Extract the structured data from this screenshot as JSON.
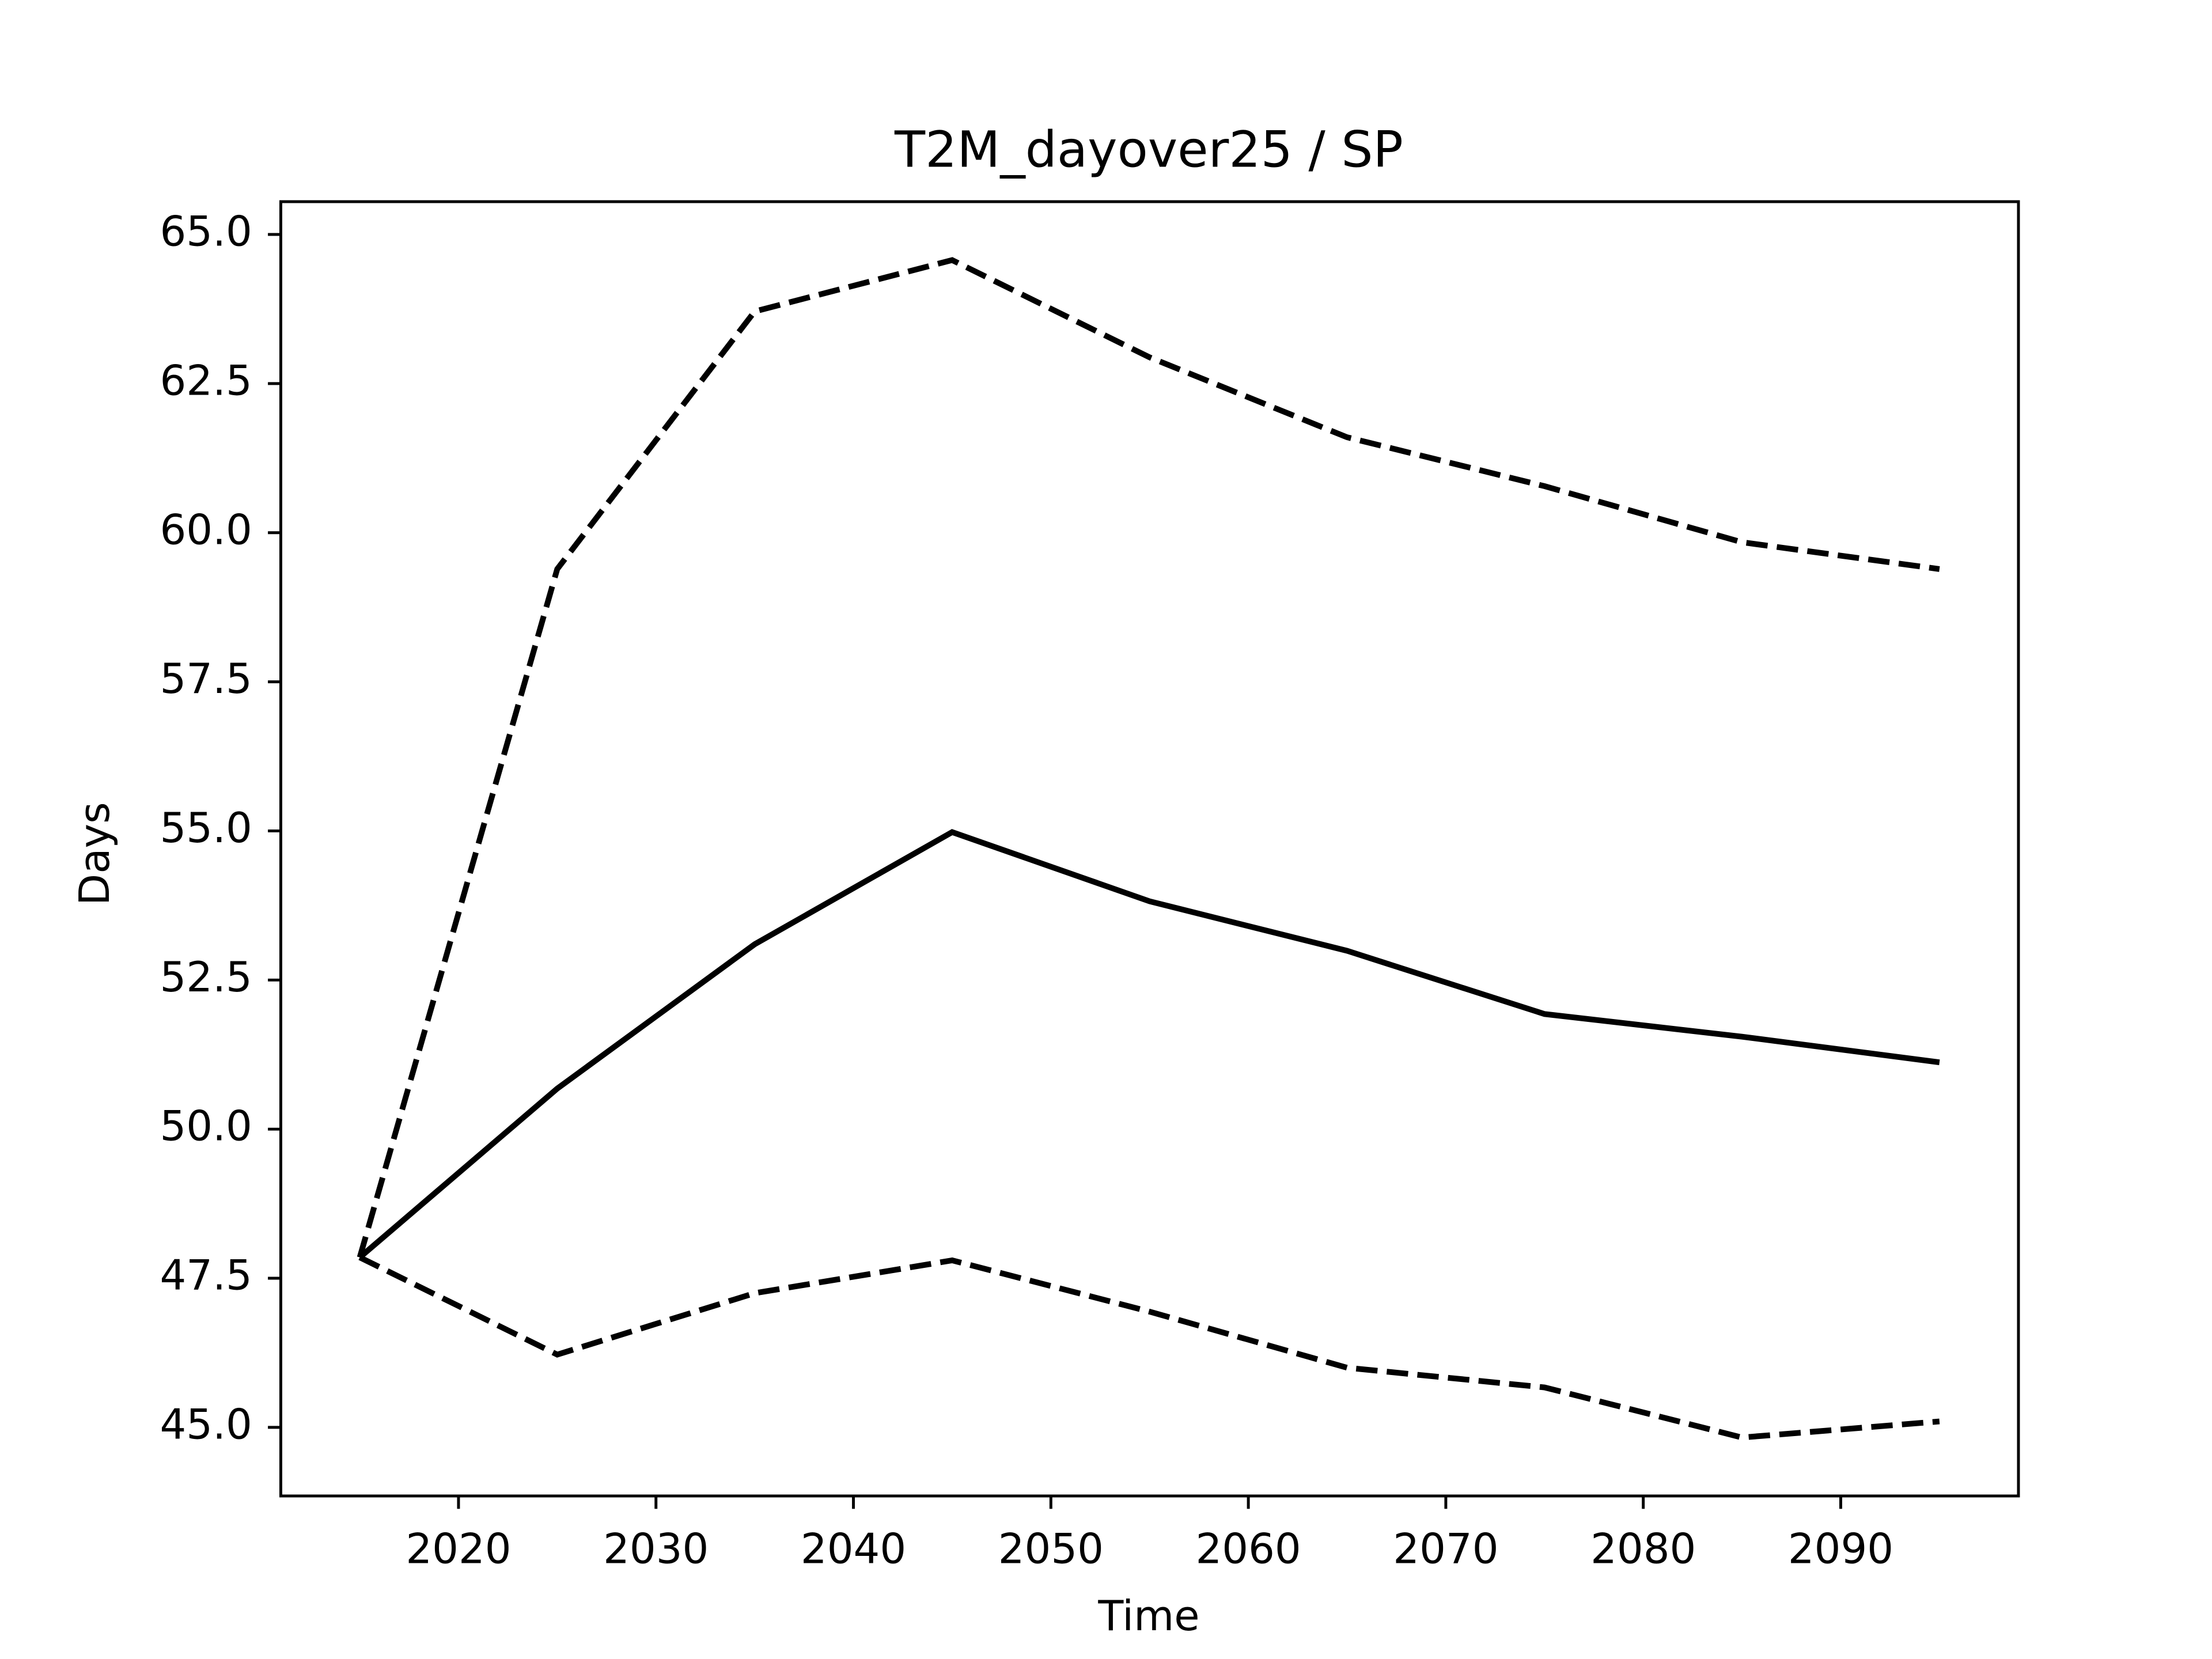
{
  "chart_data": {
    "type": "line",
    "title": "T2M_dayover25 / SP",
    "xlabel": "Time",
    "ylabel": "Days",
    "x": [
      2015,
      2025,
      2035,
      2045,
      2055,
      2065,
      2075,
      2085,
      2095
    ],
    "series": [
      {
        "color": "#000000",
        "linestyle": "solid",
        "values": [
          47.85,
          50.68,
          53.1,
          54.98,
          53.82,
          52.99,
          51.93,
          51.55,
          51.12
        ]
      },
      {
        "color": "#000000",
        "linestyle": "dashed",
        "values": [
          47.85,
          59.39,
          63.71,
          64.57,
          62.94,
          61.6,
          60.78,
          59.84,
          59.39
        ]
      },
      {
        "color": "#000000",
        "linestyle": "dashed",
        "values": [
          47.85,
          46.22,
          47.25,
          47.8,
          46.94,
          46.0,
          45.67,
          44.83,
          45.1
        ]
      }
    ],
    "xlim": [
      2011,
      2099
    ],
    "xticks": [
      2020,
      2030,
      2040,
      2050,
      2060,
      2070,
      2080,
      2090
    ],
    "ylim": [
      43.85,
      65.55
    ],
    "yticks": [
      {
        "value": 45,
        "label": "45.0"
      },
      {
        "value": 47.5,
        "label": "47.5"
      },
      {
        "value": 50,
        "label": "50.0"
      },
      {
        "value": 52.5,
        "label": "52.5"
      },
      {
        "value": 55,
        "label": "55.0"
      },
      {
        "value": 57.5,
        "label": "57.5"
      },
      {
        "value": 60,
        "label": "60.0"
      },
      {
        "value": 62.5,
        "label": "62.5"
      },
      {
        "value": 65,
        "label": "65.0"
      }
    ],
    "grid": false
  }
}
